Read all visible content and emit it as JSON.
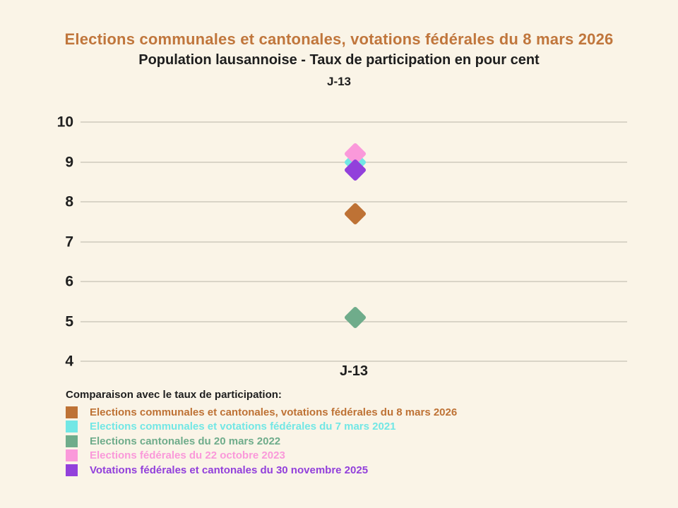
{
  "header": {
    "title": "Elections communales et cantonales, votations fédérales du 8 mars 2026",
    "subtitle": "Population lausannoise - Taux de participation en pour cent",
    "period": "J-13"
  },
  "colors": {
    "background": "#faf4e7",
    "title": "#c0763c",
    "text_dark": "#1e1e1e",
    "gridline": "#d9d4c7"
  },
  "chart_data": {
    "type": "scatter",
    "marker": "diamond",
    "x_categories": [
      "J-13"
    ],
    "ylim": [
      4,
      10
    ],
    "y_ticks": [
      10,
      9,
      8,
      7,
      6,
      5,
      4
    ],
    "grid": true,
    "legend_position": "bottom",
    "series": [
      {
        "name": "Elections communales et cantonales, votations fédérales du 8 mars 2026",
        "color": "#be7235",
        "values": [
          7.7
        ]
      },
      {
        "name": "Elections communales et votations fédérales du 7 mars 2021",
        "color": "#72e7e5",
        "values": [
          9.0
        ]
      },
      {
        "name": "Elections cantonales du 20 mars 2022",
        "color": "#6fac8b",
        "values": [
          5.1
        ]
      },
      {
        "name": "Elections fédérales du 22 octobre 2023",
        "color": "#fa99da",
        "values": [
          9.2
        ]
      },
      {
        "name": "Votations fédérales et cantonales du 30 novembre 2025",
        "color": "#9240db",
        "values": [
          8.8
        ]
      }
    ]
  },
  "legend": {
    "header": "Comparaison avec le taux de participation:",
    "items": [
      {
        "label": "Elections communales et cantonales, votations fédérales du 8 mars 2026",
        "color": "#be7235"
      },
      {
        "label": "Elections communales et votations fédérales du 7 mars 2021",
        "color": "#72e7e5"
      },
      {
        "label": "Elections cantonales du 20 mars 2022",
        "color": "#6fac8b"
      },
      {
        "label": "Elections fédérales du 22 octobre 2023",
        "color": "#fa99da"
      },
      {
        "label": "Votations fédérales et cantonales du 30 novembre 2025",
        "color": "#9240db"
      }
    ]
  }
}
